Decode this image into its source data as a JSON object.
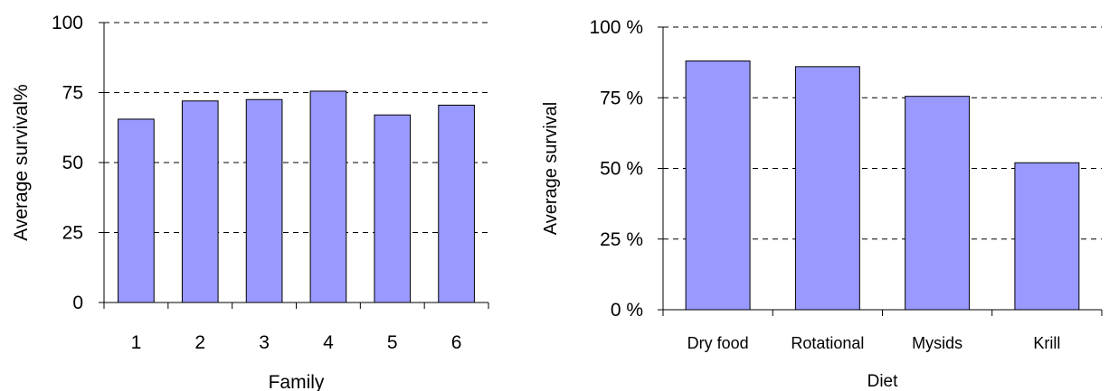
{
  "chart_data": [
    {
      "type": "bar",
      "categories": [
        "1",
        "2",
        "3",
        "4",
        "5",
        "6"
      ],
      "values": [
        65.5,
        72,
        72.5,
        75.5,
        67,
        70.5
      ],
      "title": "",
      "xlabel": "Family",
      "ylabel": "Average survival%",
      "ylim": [
        0,
        100
      ],
      "yticks": [
        "0",
        "25",
        "50",
        "75",
        "100"
      ],
      "grid": "horizontal dashed",
      "bar_color": "#9999ff"
    },
    {
      "type": "bar",
      "categories": [
        "Dry food",
        "Rotational",
        "Mysids",
        "Krill"
      ],
      "values": [
        88,
        86,
        75.5,
        52
      ],
      "title": "",
      "xlabel": "Diet",
      "ylabel": "Average survival",
      "ylim": [
        0,
        100
      ],
      "yticks": [
        "0 %",
        "25 %",
        "50 %",
        "75 %",
        "100 %"
      ],
      "grid": "horizontal dashed",
      "bar_color": "#9999ff"
    }
  ]
}
